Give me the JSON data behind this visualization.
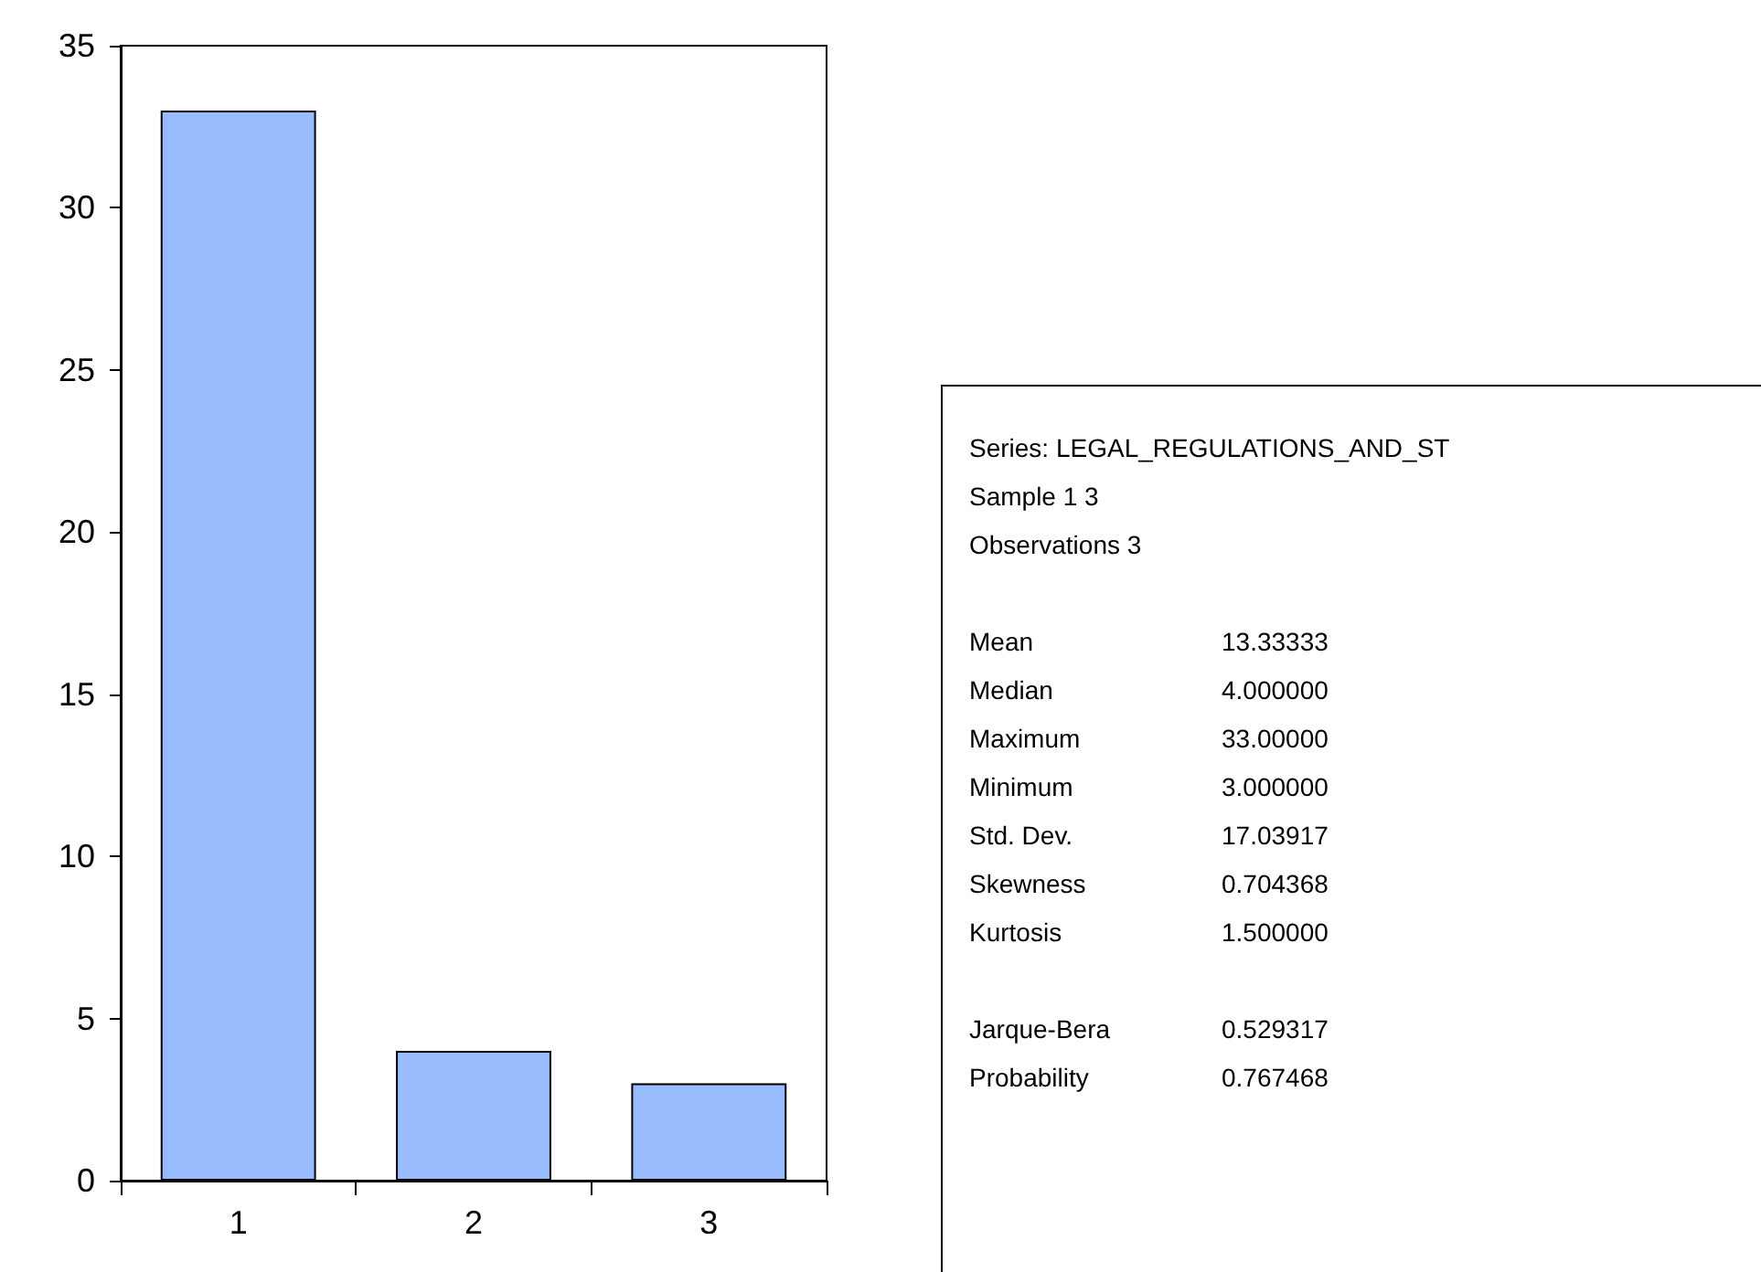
{
  "chart_data": {
    "type": "bar",
    "categories": [
      "1",
      "2",
      "3"
    ],
    "values": [
      33,
      4,
      3
    ],
    "color": "#99bbff",
    "ylim": [
      0,
      35
    ],
    "yticks": [
      0,
      5,
      10,
      15,
      20,
      25,
      30,
      35
    ],
    "grid": false,
    "annotations": [
      "Series: LEGAL_REGULATIONS_AND_ST",
      "Sample 1 3",
      "Observations 3",
      "Mean\t13.33333",
      "Median\t4.000000",
      "Maximum\t33.00000",
      "Minimum\t3.000000",
      "Std. Dev.\t17.03917",
      "Skewness\t0.704368",
      "Kurtosis\t1.500000",
      "Jarque-Bera\t0.529317",
      "Probability\t0.767468"
    ]
  }
}
